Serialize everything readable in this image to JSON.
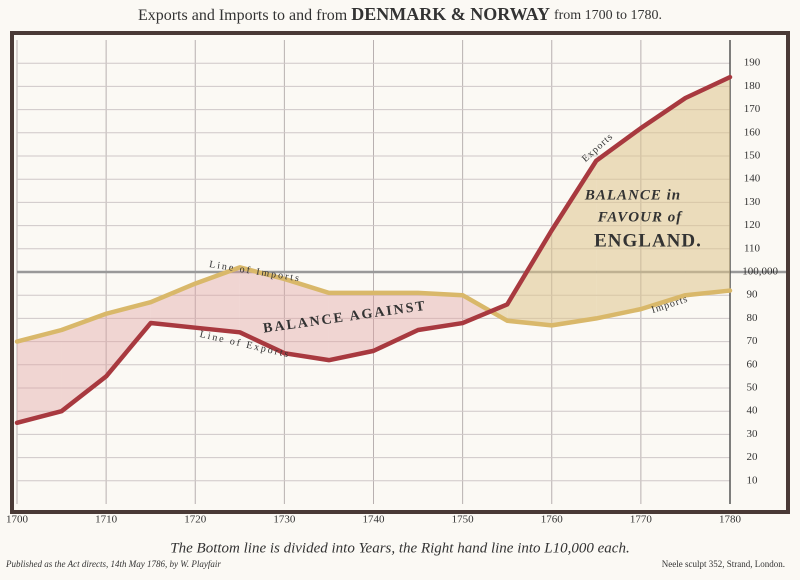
{
  "chart_data": {
    "type": "line",
    "title": [
      "Exports and Imports to and from",
      "DENMARK & NORWAY",
      "from 1700 to 1780."
    ],
    "x": [
      1700,
      1705,
      1710,
      1715,
      1720,
      1725,
      1730,
      1735,
      1740,
      1745,
      1750,
      1755,
      1760,
      1765,
      1770,
      1775,
      1780
    ],
    "series": [
      {
        "name": "Exports",
        "color": "#a8393f",
        "values": [
          35,
          40,
          55,
          78,
          76,
          74,
          65,
          62,
          66,
          75,
          78,
          86,
          118,
          148,
          162,
          175,
          184
        ]
      },
      {
        "name": "Imports",
        "color": "#d9b86a",
        "values": [
          70,
          75,
          82,
          87,
          95,
          102,
          97,
          91,
          91,
          91,
          90,
          79,
          77,
          80,
          84,
          90,
          92
        ]
      }
    ],
    "xlim": [
      1700,
      1780
    ],
    "xticks": [
      1700,
      1710,
      1720,
      1730,
      1740,
      1750,
      1760,
      1770,
      1780
    ],
    "ylim": [
      0,
      200
    ],
    "yticks": [
      10,
      20,
      30,
      40,
      50,
      60,
      70,
      80,
      90,
      {
        "value": 100,
        "label": "100,000"
      },
      110,
      120,
      130,
      140,
      150,
      160,
      170,
      180,
      190
    ],
    "grid": true,
    "annotations": [
      "Line of Imports",
      "Line of Exports",
      "BALANCE AGAINST",
      "BALANCE in",
      "FAVOUR of",
      "ENGLAND."
    ],
    "caption": "The Bottom line is divided into Years, the Right hand line into L10,000 each.",
    "footer_left": "Published as the Act directs, 14th May 1786, by W. Playfair",
    "footer_right": "Neele sculpt 352, Strand, London."
  }
}
